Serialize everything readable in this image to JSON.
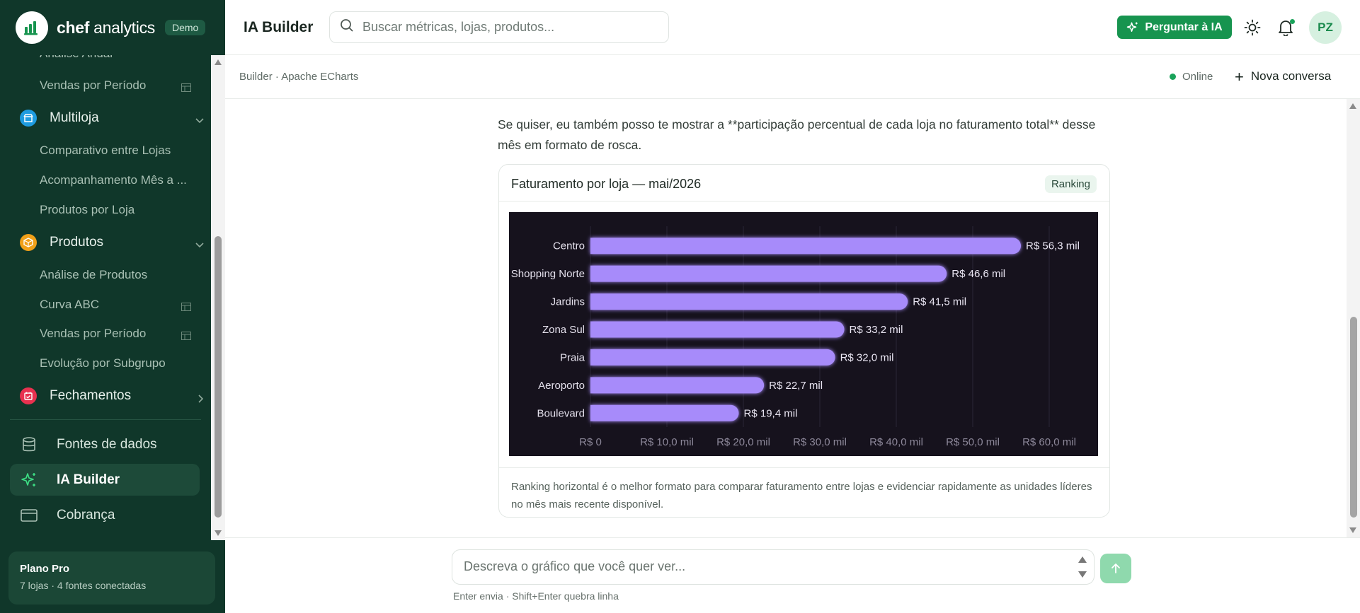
{
  "brand": {
    "name_bold": "chef",
    "name_rest": " analytics",
    "badge": "Demo"
  },
  "sidebar": {
    "partial_item": "Análise Anual",
    "items_top": [
      {
        "label": "Vendas por Período",
        "has_table_icon": true
      }
    ],
    "groups": [
      {
        "label": "Multiloja",
        "color": "#1e9be0",
        "expanded": true,
        "children": [
          {
            "label": "Comparativo entre Lojas"
          },
          {
            "label": "Acompanhamento Mês a ..."
          },
          {
            "label": "Produtos por Loja"
          }
        ]
      },
      {
        "label": "Produtos",
        "color": "#f0a019",
        "expanded": true,
        "children": [
          {
            "label": "Análise de Produtos"
          },
          {
            "label": "Curva ABC",
            "has_table_icon": true
          },
          {
            "label": "Vendas por Período",
            "has_table_icon": true
          },
          {
            "label": "Evolução por Subgrupo"
          }
        ]
      },
      {
        "label": "Fechamentos",
        "color": "#e8314f",
        "expanded": false,
        "children": []
      }
    ],
    "main": [
      {
        "label": "Fontes de dados",
        "icon": "database-icon"
      },
      {
        "label": "IA Builder",
        "icon": "sparkles-icon",
        "active": true
      },
      {
        "label": "Cobrança",
        "icon": "credit-card-icon"
      }
    ],
    "plan": {
      "title": "Plano Pro",
      "subtitle": "7 lojas · 4 fontes conectadas"
    }
  },
  "header": {
    "title": "IA Builder",
    "search_placeholder": "Buscar métricas, lojas, produtos...",
    "ask_button": "Perguntar à IA",
    "avatar": "PZ"
  },
  "subbar": {
    "breadcrumb": "Builder · Apache ECharts",
    "status": "Online",
    "new_chat": "Nova conversa"
  },
  "message": {
    "text": "Se quiser, eu também posso te mostrar a **participação percentual de cada loja no faturamento total** desse mês em formato de rosca."
  },
  "card": {
    "title": "Faturamento por loja — mai/2026",
    "badge": "Ranking",
    "footer": "Ranking horizontal é o melhor formato para comparar faturamento entre lojas e evidenciar rapidamente as unidades líderes no mês mais recente disponível."
  },
  "chart_data": {
    "type": "bar",
    "orientation": "horizontal",
    "categories": [
      "Centro",
      "Shopping Norte",
      "Jardins",
      "Zona Sul",
      "Praia",
      "Aeroporto",
      "Boulevard"
    ],
    "values": [
      56.3,
      46.6,
      41.5,
      33.2,
      32.0,
      22.7,
      19.4
    ],
    "data_labels": [
      "R$ 56,3 mil",
      "R$ 46,6 mil",
      "R$ 41,5 mil",
      "R$ 33,2 mil",
      "R$ 32,0 mil",
      "R$ 22,7 mil",
      "R$ 19,4 mil"
    ],
    "x_ticks": [
      0,
      10,
      20,
      30,
      40,
      50,
      60
    ],
    "x_tick_labels": [
      "R$ 0",
      "R$ 10,0 mil",
      "R$ 20,0 mil",
      "R$ 30,0 mil",
      "R$ 40,0 mil",
      "R$ 50,0 mil",
      "R$ 60,0 mil"
    ],
    "xlim": [
      0,
      60
    ],
    "unit": "mil R$",
    "grid": true,
    "bar_color": "#a78bfa",
    "background": "#16121d"
  },
  "composer": {
    "placeholder": "Descreva o gráfico que você quer ver...",
    "hint": "Enter envia · Shift+Enter quebra linha"
  },
  "colors": {
    "sidebar_bg": "#10372a",
    "accent": "#17944f",
    "send_disabled": "#8fd9ad"
  }
}
